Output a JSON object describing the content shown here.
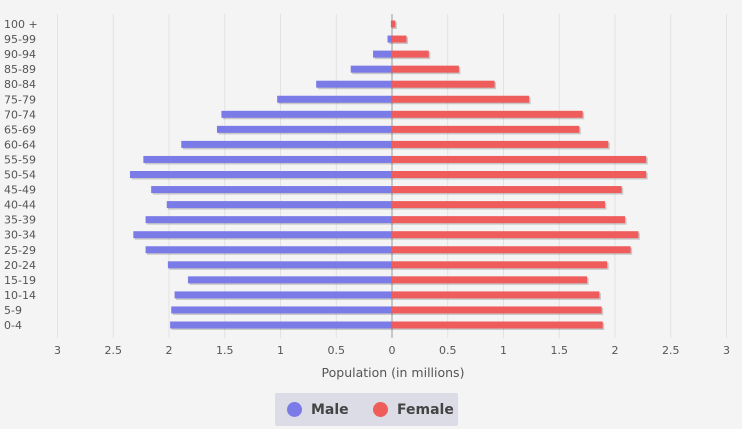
{
  "chart_data": {
    "type": "bar",
    "orientation": "horizontal",
    "layout": "population-pyramid",
    "categories": [
      "0-4",
      "5-9",
      "10-14",
      "15-19",
      "20-24",
      "25-29",
      "30-34",
      "35-39",
      "40-44",
      "45-49",
      "50-54",
      "55-59",
      "60-64",
      "65-69",
      "70-74",
      "75-79",
      "80-84",
      "85-89",
      "90-94",
      "95-99",
      "100 +"
    ],
    "series": [
      {
        "name": "Male",
        "color": "#7b7be8",
        "side": "left",
        "values": [
          1.99,
          1.98,
          1.95,
          1.83,
          2.01,
          2.21,
          2.32,
          2.21,
          2.02,
          2.16,
          2.35,
          2.23,
          1.89,
          1.57,
          1.53,
          1.03,
          0.68,
          0.37,
          0.17,
          0.04,
          0.01
        ]
      },
      {
        "name": "Female",
        "color": "#ef5c5c",
        "side": "right",
        "values": [
          1.89,
          1.88,
          1.86,
          1.75,
          1.93,
          2.14,
          2.21,
          2.09,
          1.91,
          2.06,
          2.28,
          2.28,
          1.94,
          1.68,
          1.71,
          1.23,
          0.92,
          0.6,
          0.33,
          0.13,
          0.03
        ]
      }
    ],
    "xlabel": "Population (in millions)",
    "x_ticks": [
      "3",
      "2.5",
      "2",
      "1.5",
      "1",
      "0.5",
      "0",
      "0.5",
      "1",
      "1.5",
      "2",
      "2.5",
      "3"
    ],
    "xlim": [
      -3,
      3
    ],
    "grid": true,
    "legend_position": "bottom-center"
  }
}
